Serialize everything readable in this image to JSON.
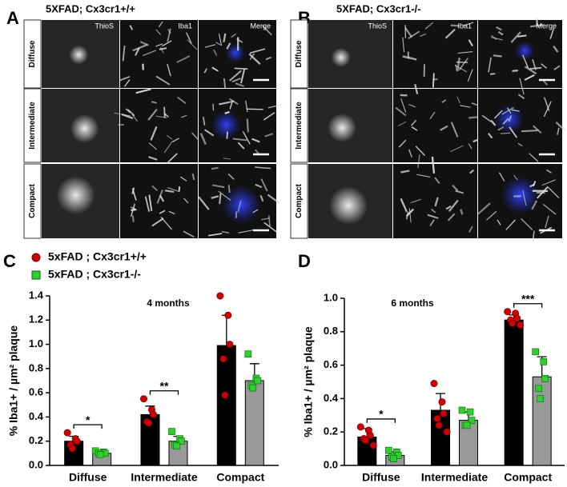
{
  "figure": {
    "panels": [
      {
        "letter": "A",
        "title": "5XFAD; Cx3cr1+/+",
        "columns": [
          "ThioS",
          "Iba1",
          "Merge"
        ],
        "rows": [
          "Diffuse",
          "Intermediate",
          "Compact"
        ]
      },
      {
        "letter": "B",
        "title": "5XFAD; Cx3cr1-/-",
        "columns": [
          "ThioS",
          "Iba1",
          "Merge"
        ],
        "rows": [
          "Diffuse",
          "Intermediate",
          "Compact"
        ]
      }
    ]
  },
  "chart_data": [
    {
      "type": "bar",
      "panel": "C",
      "title": "4 months",
      "ylabel": "% Iba1+ / µm² plaque",
      "legend": true,
      "categories": [
        "Diffuse",
        "Intermediate",
        "Compact"
      ],
      "series": [
        {
          "name": "5xFAD ; Cx3cr1+/+",
          "color": "#000000",
          "marker_color": "#cc0000",
          "marker": "circle",
          "values": [
            0.2,
            0.42,
            0.99
          ],
          "errors": [
            0.04,
            0.07,
            0.25
          ],
          "points": [
            [
              0.27,
              0.22,
              0.2,
              0.17,
              0.14
            ],
            [
              0.55,
              0.46,
              0.42,
              0.36,
              0.35
            ],
            [
              1.4,
              1.24,
              1.0,
              0.88,
              0.58
            ]
          ]
        },
        {
          "name": "5xFAD ; Cx3cr1-/-",
          "color": "#999999",
          "marker_color": "#33cc33",
          "marker": "square",
          "values": [
            0.1,
            0.2,
            0.7
          ],
          "errors": [
            0.02,
            0.04,
            0.14
          ],
          "points": [
            [
              0.12,
              0.11,
              0.1,
              0.1,
              0.09
            ],
            [
              0.28,
              0.22,
              0.2,
              0.17,
              0.16
            ],
            [
              0.92,
              0.72,
              0.7,
              0.66,
              0.64
            ]
          ]
        }
      ],
      "significance": [
        "*",
        "**",
        null
      ],
      "ylim": [
        0,
        1.4
      ],
      "yticks": [
        {
          "value": 0,
          "label": "0.0"
        },
        0.2,
        0.4,
        0.6,
        0.8,
        {
          "value": 1,
          "label": "1.0"
        },
        1.2,
        1.4
      ]
    },
    {
      "type": "bar",
      "panel": "D",
      "title": "6 months",
      "ylabel": "% Iba1+ / µm² plaque",
      "legend": false,
      "categories": [
        "Diffuse",
        "Intermediate",
        "Compact"
      ],
      "series": [
        {
          "color": "#000000",
          "marker_color": "#cc0000",
          "marker": "circle",
          "values": [
            0.17,
            0.33,
            0.87
          ],
          "errors": [
            0.05,
            0.1,
            0.03
          ],
          "points": [
            [
              0.23,
              0.21,
              0.18,
              0.16,
              0.15,
              0.12
            ],
            [
              0.49,
              0.38,
              0.31,
              0.28,
              0.24,
              0.2
            ],
            [
              0.92,
              0.91,
              0.88,
              0.87,
              0.85,
              0.84
            ]
          ]
        },
        {
          "color": "#999999",
          "marker_color": "#33cc33",
          "marker": "square",
          "values": [
            0.06,
            0.27,
            0.53
          ],
          "errors": [
            0.02,
            0.05,
            0.12
          ],
          "points": [
            [
              0.09,
              0.08,
              0.06,
              0.05,
              0.04
            ],
            [
              0.33,
              0.32,
              0.27,
              0.24,
              0.24
            ],
            [
              0.68,
              0.62,
              0.52,
              0.46,
              0.4
            ]
          ]
        }
      ],
      "significance": [
        "*",
        null,
        "***"
      ],
      "ylim": [
        0,
        1
      ],
      "yticks": [
        {
          "value": 0,
          "label": "0.0"
        },
        0.2,
        0.4,
        0.6,
        0.8,
        {
          "value": 1,
          "label": "1.0"
        }
      ]
    }
  ]
}
